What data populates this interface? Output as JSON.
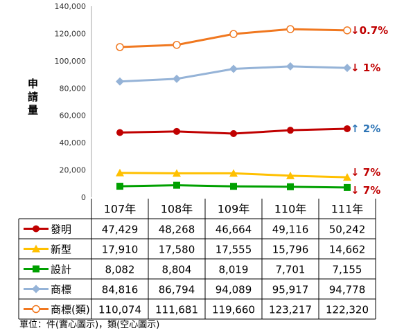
{
  "chart_data": {
    "type": "line",
    "ylabel": "申請量",
    "ylim": [
      0,
      140000
    ],
    "yticks": [
      "0",
      "20,000",
      "40,000",
      "60,000",
      "80,000",
      "100,000",
      "120,000",
      "140,000"
    ],
    "categories": [
      "107年",
      "108年",
      "109年",
      "110年",
      "111年"
    ],
    "grid": false,
    "legend": "table-below",
    "series": [
      {
        "name": "發明",
        "values": [
          47429,
          48268,
          46664,
          49116,
          50242
        ],
        "labels": [
          "47,429",
          "48,268",
          "46,664",
          "49,116",
          "50,242"
        ],
        "color": "#C00000",
        "marker": "circle",
        "change": "↑ 2%",
        "change_color": "#2E75B6"
      },
      {
        "name": "新型",
        "values": [
          17910,
          17580,
          17555,
          15796,
          14662
        ],
        "labels": [
          "17,910",
          "17,580",
          "17,555",
          "15,796",
          "14,662"
        ],
        "color": "#FFC000",
        "marker": "triangle",
        "change": "↓ 7%",
        "change_color": "#C00000"
      },
      {
        "name": "設計",
        "values": [
          8082,
          8804,
          8019,
          7701,
          7155
        ],
        "labels": [
          "8,082",
          "8,804",
          "8,019",
          "7,701",
          "7,155"
        ],
        "color": "#00A000",
        "marker": "square",
        "change": "↓ 7%",
        "change_color": "#C00000"
      },
      {
        "name": "商標",
        "values": [
          84816,
          86794,
          94089,
          95917,
          94778
        ],
        "labels": [
          "84,816",
          "86,794",
          "94,089",
          "95,917",
          "94,778"
        ],
        "color": "#95B3D7",
        "marker": "diamond",
        "change": "↓ 1%",
        "change_color": "#C00000"
      },
      {
        "name": "商標(類)",
        "values": [
          110074,
          111681,
          119660,
          123217,
          122320
        ],
        "labels": [
          "110,074",
          "111,681",
          "119,660",
          "123,217",
          "122,320"
        ],
        "color": "#F07820",
        "marker": "open-circle",
        "change": "↓0.7%",
        "change_color": "#C00000"
      }
    ]
  },
  "footnote": "單位：件(實心圖示)，類(空心圖示)"
}
